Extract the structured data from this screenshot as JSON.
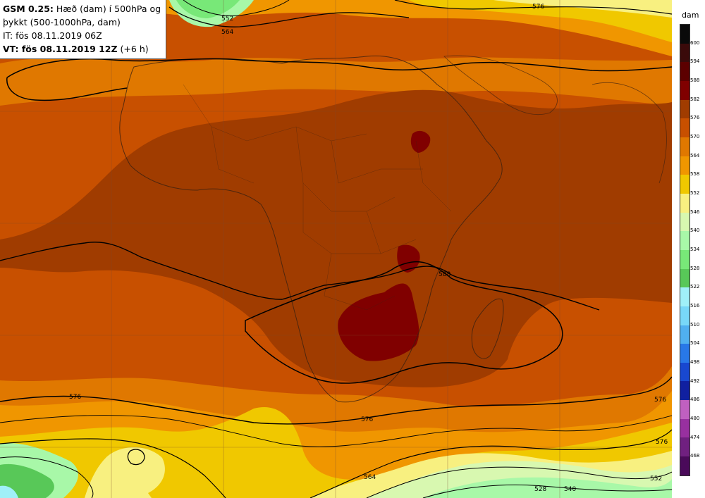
{
  "header": {
    "model_label": "GSM 0.25:",
    "title_rest": " Hæð (dam) í 500hPa og",
    "title_line2": "þykkt (500-1000hPa, dam)",
    "issue_time": "IT: fös 08.11.2019 06Z",
    "valid_label": "VT: fös 08.11.2019 12Z",
    "valid_offset": " (+6 h)"
  },
  "legend": {
    "unit": "dam",
    "levels": [
      "600",
      "594",
      "588",
      "582",
      "576",
      "570",
      "564",
      "558",
      "552",
      "546",
      "540",
      "534",
      "528",
      "522",
      "516",
      "510",
      "504",
      "498",
      "492",
      "486",
      "480",
      "474",
      "468"
    ],
    "colors": [
      "#0a0a0a",
      "#3a0a0a",
      "#5c0000",
      "#800000",
      "#a03c00",
      "#c85000",
      "#e07800",
      "#f09600",
      "#f0c800",
      "#f8f080",
      "#d8f8b0",
      "#a8f8a8",
      "#78e878",
      "#58c858",
      "#a0f0f8",
      "#78d8f8",
      "#50b0f0",
      "#2878e8",
      "#1848d0",
      "#1020a0",
      "#c060c0",
      "#9830a0",
      "#702080",
      "#4a0a5a"
    ]
  },
  "contour_labels": [
    "552",
    "564",
    "576",
    "576",
    "576",
    "576",
    "588",
    "576",
    "564",
    "540",
    "528",
    "552"
  ],
  "colors": {
    "map_base": "#c85000",
    "deep": "#a03c00",
    "peak": "#800000",
    "orange": "#e07800",
    "light_orange": "#f09600",
    "yellow": "#f0c800",
    "pale_yellow": "#f8f080",
    "pale_green": "#d8f8b0",
    "green": "#a8f8a8",
    "dark_green": "#58c858"
  }
}
